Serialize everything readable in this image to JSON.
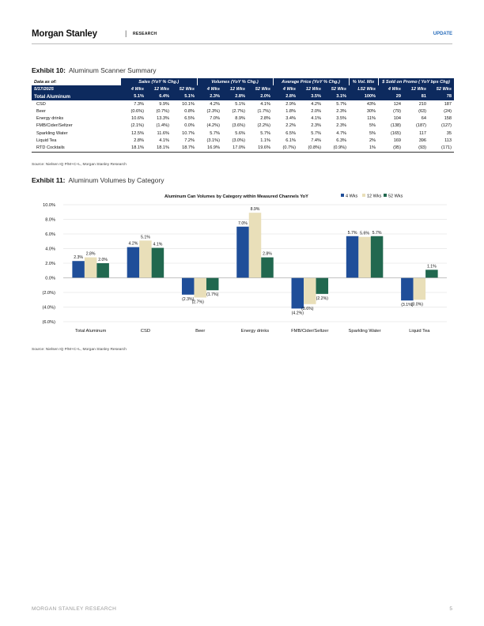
{
  "header": {
    "logo": "Morgan Stanley",
    "separator": "|",
    "subtitle": "RESEARCH",
    "tag": "UPDATE"
  },
  "exhibit10": {
    "label": "Exhibit 10:",
    "title": "Aluminum Scanner Summary",
    "data_as_of_label": "Data as of:",
    "data_as_of_date": "5/17/2025",
    "groups": [
      "Sales (YoY % Chg.)",
      "Volumes (YoY % Chg.)",
      "Average Price (YoY % Chg.)",
      "% Vol. Mix",
      "$ Sold on Promo ( YoY bps Chg)"
    ],
    "subheaders": [
      "4 Wks",
      "12 Wks",
      "52 Wks",
      "4 Wks",
      "12 Wks",
      "52 Wks",
      "4 Wks",
      "12 Wks",
      "52 Wks",
      "L52 Wks",
      "4 Wks",
      "12 Wks",
      "52 Wks"
    ],
    "total": {
      "label": "Total Aluminum",
      "values": [
        "5.1%",
        "6.4%",
        "5.1%",
        "2.3%",
        "2.8%",
        "2.0%",
        "2.8%",
        "3.5%",
        "3.1%",
        "100%",
        "29",
        "81",
        "78"
      ]
    },
    "rows": [
      {
        "label": "CSD",
        "values": [
          "7.3%",
          "9.9%",
          "10.1%",
          "4.2%",
          "5.1%",
          "4.1%",
          "2.9%",
          "4.2%",
          "5.7%",
          "43%",
          "124",
          "210",
          "187"
        ]
      },
      {
        "label": "Beer",
        "values": [
          "(0.6%)",
          "(0.7%)",
          "0.8%",
          "(2.3%)",
          "(2.7%)",
          "(1.7%)",
          "1.8%",
          "2.0%",
          "2.3%",
          "30%",
          "(79)",
          "(63)",
          "(24)"
        ]
      },
      {
        "label": "Energy drinks",
        "values": [
          "10.6%",
          "13.3%",
          "6.5%",
          "7.0%",
          "8.9%",
          "2.8%",
          "3.4%",
          "4.1%",
          "3.5%",
          "11%",
          "104",
          "64",
          "158"
        ]
      },
      {
        "label": "FMB/Cider/Seltzer",
        "values": [
          "(2.1%)",
          "(1.4%)",
          "0.0%",
          "(4.2%)",
          "(3.6%)",
          "(2.2%)",
          "2.2%",
          "2.3%",
          "2.3%",
          "5%",
          "(138)",
          "(187)",
          "(127)"
        ]
      },
      {
        "label": "Sparkling Water",
        "values": [
          "12.5%",
          "11.6%",
          "10.7%",
          "5.7%",
          "5.6%",
          "5.7%",
          "6.5%",
          "5.7%",
          "4.7%",
          "5%",
          "(165)",
          "117",
          "35"
        ]
      },
      {
        "label": "Liquid Tea",
        "values": [
          "2.8%",
          "4.1%",
          "7.2%",
          "(3.1%)",
          "(3.0%)",
          "1.1%",
          "6.1%",
          "7.4%",
          "6.3%",
          "2%",
          "169",
          "396",
          "113"
        ]
      },
      {
        "label": "RTD Cocktails",
        "values": [
          "18.1%",
          "18.1%",
          "18.7%",
          "16.9%",
          "17.0%",
          "19.6%",
          "(0.7%)",
          "(0.8%)",
          "(0.9%)",
          "1%",
          "(95)",
          "(93)",
          "(171)"
        ]
      }
    ],
    "source": "Source: Nielsen IQ P/M+C+L, Morgan Stanley Research"
  },
  "exhibit11": {
    "label": "Exhibit 11:",
    "title": "Aluminum Volumes by Category",
    "source": "Source: Nielsen IQ P/M+C+L, Morgan Stanley Research"
  },
  "chart_data": {
    "type": "bar",
    "title": "Aluminum Can Volumes by Category within Measured Channels YoY",
    "categories": [
      "Total Aluminum",
      "CSD",
      "Beer",
      "Energy drinks",
      "FMB/Cider/Seltzer",
      "Sparkling Water",
      "Liquid Tea"
    ],
    "series": [
      {
        "name": "4 Wks",
        "color": "#1f4e99",
        "values": [
          2.3,
          4.2,
          -2.3,
          7.0,
          -4.2,
          5.7,
          -3.1
        ]
      },
      {
        "name": "12 Wks",
        "color": "#e9dfb9",
        "values": [
          2.8,
          5.1,
          -2.7,
          8.9,
          -3.6,
          5.6,
          -3.0
        ]
      },
      {
        "name": "52 Wks",
        "color": "#21684f",
        "values": [
          2.0,
          4.1,
          -1.7,
          2.8,
          -2.2,
          5.7,
          1.1
        ]
      }
    ],
    "data_labels": [
      [
        "2.3%",
        "2.8%",
        "2.0%"
      ],
      [
        "4.2%",
        "5.1%",
        "4.1%"
      ],
      [
        "(2.3%)",
        "(2.7%)",
        "(1.7%)"
      ],
      [
        "7.0%",
        "8.9%",
        "2.8%"
      ],
      [
        "(4.2%)",
        "(3.6%)",
        "(2.2%)"
      ],
      [
        "5.7%",
        "5.6%",
        "5.7%"
      ],
      [
        "(3.1%)",
        "(3.0%)",
        "1.1%"
      ]
    ],
    "y_ticks": [
      10,
      8,
      6,
      4,
      2,
      0,
      -2,
      -4,
      -6
    ],
    "y_tick_labels": [
      "10.0%",
      "8.0%",
      "6.0%",
      "4.0%",
      "2.0%",
      "0.0%",
      "(2.0%)",
      "(4.0%)",
      "(6.0%)"
    ],
    "ylim": [
      -6,
      10
    ],
    "grid": true,
    "legend_position": "top-right",
    "xlabel": "",
    "ylabel": ""
  },
  "footer": {
    "left": "MORGAN STANLEY RESEARCH",
    "page": "5"
  }
}
